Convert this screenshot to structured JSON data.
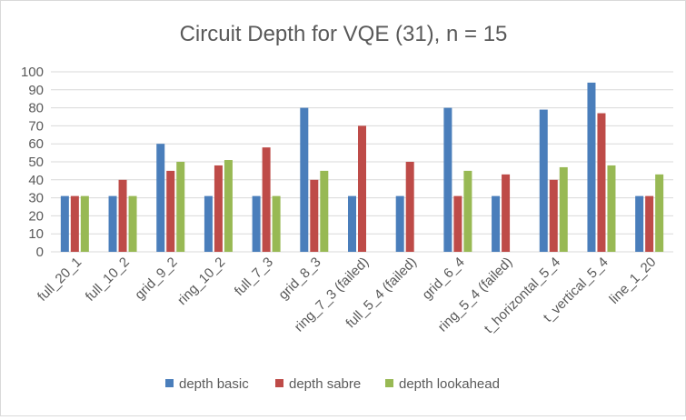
{
  "chart_data": {
    "type": "bar",
    "title": "Circuit Depth for VQE (31), n = 15",
    "xlabel": "",
    "ylabel": "",
    "ylim": [
      0,
      100
    ],
    "yticks": [
      0,
      10,
      20,
      30,
      40,
      50,
      60,
      70,
      80,
      90,
      100
    ],
    "grid": true,
    "legend_position": "bottom",
    "categories": [
      "full_20_1",
      "full_10_2",
      "grid_9_2",
      "ring_10_2",
      "full_7_3",
      "grid_8_3",
      "ring_7_3 (failed)",
      "full_5_4 (failed)",
      "grid_6_4",
      "ring_5_4 (failed)",
      "t_horizontal_5_4",
      "t_vertical_5_4",
      "line_1_20"
    ],
    "series": [
      {
        "name": "depth basic",
        "color": "#4a7ebb",
        "values": [
          31,
          31,
          60,
          31,
          31,
          80,
          31,
          31,
          80,
          31,
          79,
          94,
          31
        ]
      },
      {
        "name": "depth sabre",
        "color": "#be4b48",
        "values": [
          31,
          40,
          45,
          48,
          58,
          40,
          70,
          50,
          31,
          43,
          40,
          77,
          31
        ]
      },
      {
        "name": "depth lookahead",
        "color": "#98b954",
        "values": [
          31,
          31,
          50,
          51,
          31,
          45,
          null,
          null,
          45,
          null,
          47,
          48,
          43
        ]
      }
    ]
  }
}
